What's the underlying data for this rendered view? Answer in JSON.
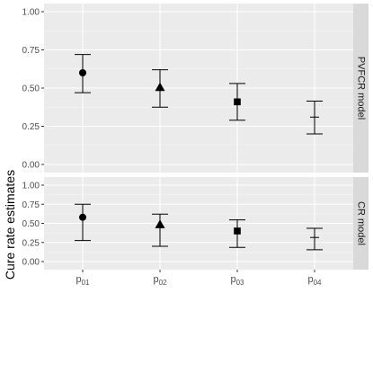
{
  "chart_data": {
    "type": "scatter",
    "ylabel": "Cure rate estimates",
    "xlabel": "",
    "ylim": [
      0,
      1
    ],
    "y_ticks": [
      "0.00",
      "0.25",
      "0.50",
      "0.75",
      "1.00"
    ],
    "categories": [
      {
        "base": "p",
        "sub": "01"
      },
      {
        "base": "p",
        "sub": "02"
      },
      {
        "base": "p",
        "sub": "03"
      },
      {
        "base": "p",
        "sub": "04"
      }
    ],
    "legend": "none",
    "grid": true,
    "panels": [
      {
        "strip_label": "PVFCR model",
        "points": [
          {
            "category": "p01",
            "estimate": 0.6,
            "lower": 0.47,
            "upper": 0.72,
            "marker": "circle"
          },
          {
            "category": "p02",
            "estimate": 0.505,
            "lower": 0.375,
            "upper": 0.62,
            "marker": "triangle"
          },
          {
            "category": "p03",
            "estimate": 0.41,
            "lower": 0.29,
            "upper": 0.53,
            "marker": "square"
          },
          {
            "category": "p04",
            "estimate": 0.31,
            "lower": 0.2,
            "upper": 0.415,
            "marker": "dash"
          }
        ]
      },
      {
        "strip_label": "CR model",
        "points": [
          {
            "category": "p01",
            "estimate": 0.58,
            "lower": 0.275,
            "upper": 0.75,
            "marker": "circle"
          },
          {
            "category": "p02",
            "estimate": 0.485,
            "lower": 0.2,
            "upper": 0.62,
            "marker": "triangle"
          },
          {
            "category": "p03",
            "estimate": 0.4,
            "lower": 0.185,
            "upper": 0.545,
            "marker": "square"
          },
          {
            "category": "p04",
            "estimate": 0.315,
            "lower": 0.155,
            "upper": 0.435,
            "marker": "dash"
          }
        ]
      }
    ]
  }
}
